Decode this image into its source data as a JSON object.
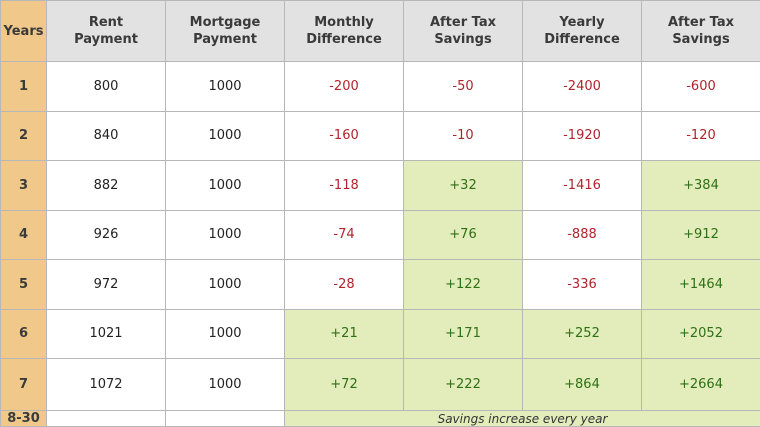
{
  "chart_data": {
    "type": "table",
    "columns": [
      "Years",
      "Rent\nPayment",
      "Mortgage\nPayment",
      "Monthly\nDifference",
      "After Tax\nSavings",
      "Yearly\nDifference",
      "After Tax\nSavings"
    ],
    "rows": [
      [
        "1",
        "800",
        "1000",
        "-200",
        "-50",
        "-2400",
        "-600"
      ],
      [
        "2",
        "840",
        "1000",
        "-160",
        "-10",
        "-1920",
        "-120"
      ],
      [
        "3",
        "882",
        "1000",
        "-118",
        "+32",
        "-1416",
        "+384"
      ],
      [
        "4",
        "926",
        "1000",
        "-74",
        "+76",
        "-888",
        "+912"
      ],
      [
        "5",
        "972",
        "1000",
        "-28",
        "+122",
        "-336",
        "+1464"
      ],
      [
        "6",
        "1021",
        "1000",
        "+21",
        "+171",
        "+252",
        "+2052"
      ],
      [
        "7",
        "1072",
        "1000",
        "+72",
        "+222",
        "+864",
        "+2664"
      ]
    ],
    "final_row": {
      "year": "8-30",
      "rent": "",
      "mortgage": "",
      "note": "Savings increase every year"
    },
    "colors": {
      "header_background": "#e2e2e2",
      "year_column_background": "#f0c98a",
      "negative_text": "#b0242c",
      "positive_text": "#2f6f15",
      "positive_background": "#e2edbb"
    }
  }
}
